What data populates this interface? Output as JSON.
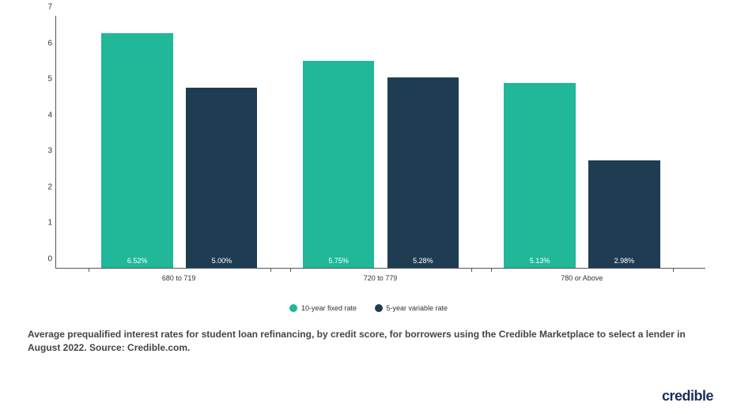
{
  "chart": {
    "type": "bar",
    "ylim": [
      0,
      7
    ],
    "ytick_step": 1,
    "axis_color": "#555555",
    "tick_fontsize": 10,
    "categories": [
      "680 to 719",
      "720 to 779",
      "780 or Above"
    ],
    "series": [
      {
        "name": "10-year fixed rate",
        "color": "#21b89a"
      },
      {
        "name": "5-year variable rate",
        "color": "#1e3d52"
      }
    ],
    "groups": [
      {
        "category": "680 to 719",
        "values": [
          6.52,
          5.0
        ],
        "labels": [
          "6.52%",
          "5.00%"
        ]
      },
      {
        "category": "720 to 779",
        "values": [
          5.75,
          5.28
        ],
        "labels": [
          "5.75%",
          "5.28%"
        ]
      },
      {
        "category": "780 or Above",
        "values": [
          5.13,
          2.98
        ],
        "labels": [
          "5.13%",
          "2.98%"
        ]
      }
    ],
    "bar_width_pct": 11,
    "group_gap_pct": 2,
    "bar_label_color": "#ffffff",
    "bar_label_fontsize": 9,
    "x_label_fontsize": 9,
    "background_color": "#ffffff"
  },
  "legend": {
    "items": [
      {
        "label": "10-year fixed rate",
        "color": "#21b89a"
      },
      {
        "label": "5-year variable rate",
        "color": "#1e3d52"
      }
    ]
  },
  "caption": "Average prequalified interest rates for student loan refinancing, by credit score, for borrowers using the Credible Marketplace to select a lender in August 2022. Source: Credible.com.",
  "logo": "credible"
}
